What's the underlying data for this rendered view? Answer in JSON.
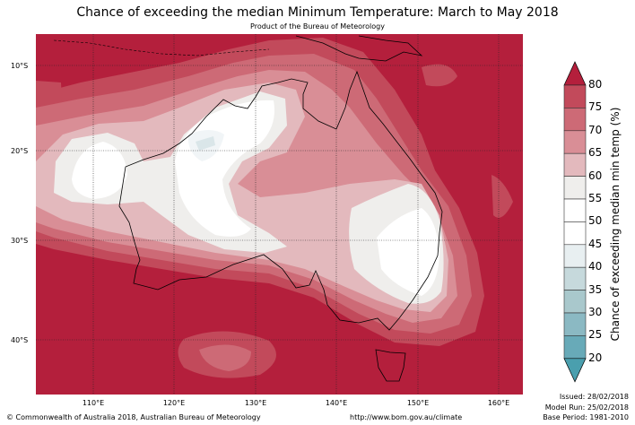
{
  "title": "Chance of exceeding the median Minimum Temperature: March to May 2018",
  "subtitle": "Product of the Bureau of Meteorology",
  "map": {
    "lat_labels": [
      "10°S",
      "20°S",
      "30°S",
      "40°S"
    ],
    "lon_labels": [
      "110°E",
      "120°E",
      "130°E",
      "140°E",
      "150°E",
      "160°E"
    ]
  },
  "colorbar": {
    "label": "Chance of exceeding median min temp (%)",
    "ticks": [
      "80",
      "75",
      "70",
      "65",
      "60",
      "55",
      "50",
      "45",
      "40",
      "35",
      "30",
      "25",
      "20"
    ],
    "colors": [
      "#b41f3c",
      "#c24a5b",
      "#cd6a76",
      "#d98e96",
      "#e3b9bd",
      "#efeeec",
      "#ffffff",
      "#ffffff",
      "#e8eff1",
      "#c6d9dc",
      "#a9c8cc",
      "#8bb9c3",
      "#68aab8",
      "#4a9fae"
    ]
  },
  "footer": {
    "copyright": "© Commonwealth of Australia 2018, Australian Bureau of Meteorology",
    "url": "http://www.bom.gov.au/climate",
    "issued": "Issued: 28/02/2018",
    "model_run": "Model Run: 25/02/2018",
    "base_period": "Base Period: 1981-2010"
  }
}
